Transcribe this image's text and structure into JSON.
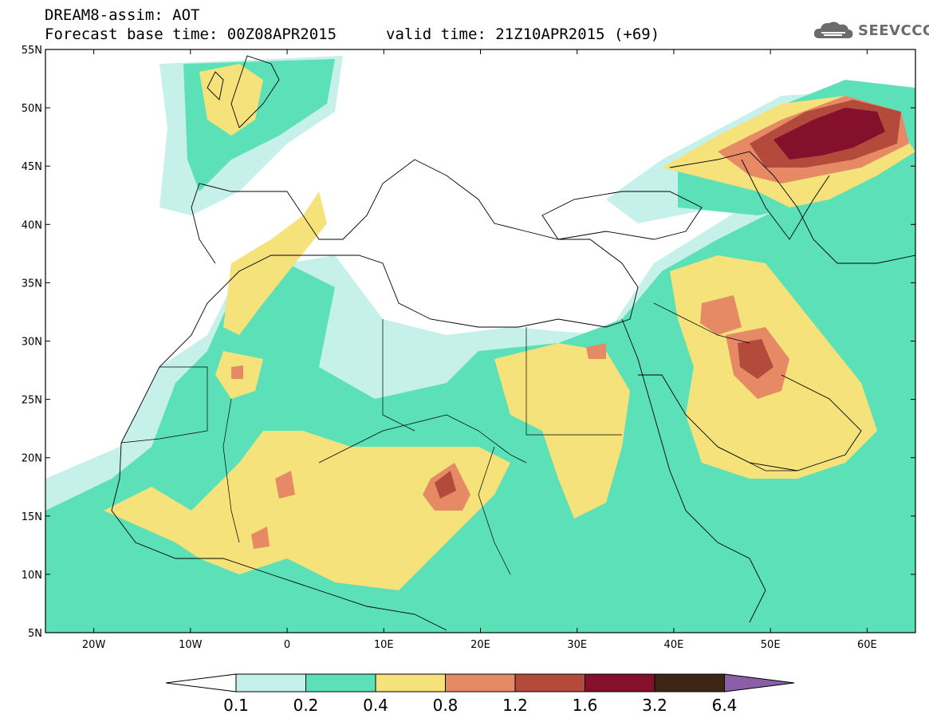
{
  "header": {
    "title": "DREAM8-assim: AOT",
    "base_time": "Forecast base time: 00Z08APR2015",
    "valid_time": "valid time: 21Z10APR2015 (+69)"
  },
  "logo": {
    "text": "SEEVCCC",
    "icon": "cloud-icon",
    "color": "#6b6b6b"
  },
  "map": {
    "lon_range": [
      -25,
      65
    ],
    "lat_range": [
      5,
      55
    ],
    "lat_ticks": [
      "55N",
      "50N",
      "45N",
      "40N",
      "35N",
      "30N",
      "25N",
      "20N",
      "15N",
      "10N",
      "5N"
    ],
    "lon_ticks": [
      "20W",
      "10W",
      "0",
      "10E",
      "20E",
      "30E",
      "40E",
      "50E",
      "60E"
    ],
    "levels": [
      0.1,
      0.2,
      0.4,
      0.8,
      1.2,
      1.6,
      3.2,
      6.4
    ],
    "colors": {
      "c1": "#c6f0ea",
      "c2": "#5ce0b8",
      "c3": "#f5e27a",
      "c4": "#e68a66",
      "c5": "#b34a3c",
      "c6": "#85102c",
      "c7": "#3d2514",
      "c8": "#8a5fa8",
      "background": "#ffffff",
      "coastline": "#000000"
    }
  },
  "colorbar": {
    "labels": [
      "0.1",
      "0.2",
      "0.4",
      "0.8",
      "1.2",
      "1.6",
      "3.2",
      "6.4"
    ]
  }
}
